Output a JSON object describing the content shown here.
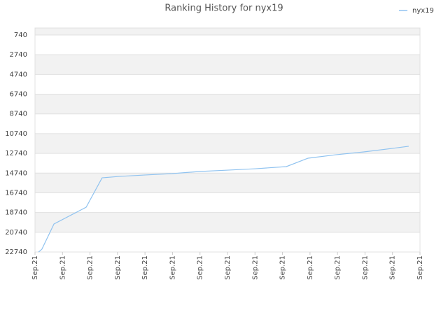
{
  "chart_data": {
    "type": "line",
    "title": "Ranking History for nyx19",
    "x": [
      0.13,
      0.25,
      0.69,
      1.86,
      2.44,
      3.05,
      4.02,
      4.99,
      5.98,
      7.0,
      8.02,
      9.14,
      9.93,
      10.94,
      11.96,
      12.98,
      13.59
    ],
    "series": [
      {
        "name": "nyx19",
        "color": "#90c3f0",
        "values": [
          22740,
          22460,
          19900,
          18200,
          15220,
          15080,
          14930,
          14790,
          14580,
          14440,
          14300,
          14080,
          13230,
          12880,
          12590,
          12240,
          12020
        ]
      }
    ],
    "xlim": [
      0,
      14
    ],
    "xticks": [
      {
        "value": 0,
        "label": "Sep.21"
      },
      {
        "value": 1,
        "label": "Sep.21"
      },
      {
        "value": 2,
        "label": "Sep.21"
      },
      {
        "value": 3,
        "label": "Sep.21"
      },
      {
        "value": 4,
        "label": "Sep.21"
      },
      {
        "value": 5,
        "label": "Sep.21"
      },
      {
        "value": 6,
        "label": "Sep.21"
      },
      {
        "value": 7,
        "label": "Sep.21"
      },
      {
        "value": 8,
        "label": "Sep.21"
      },
      {
        "value": 9,
        "label": "Sep.21"
      },
      {
        "value": 10,
        "label": "Sep.21"
      },
      {
        "value": 11,
        "label": "Sep.21"
      },
      {
        "value": 12,
        "label": "Sep.21"
      },
      {
        "value": 13,
        "label": "Sep.21"
      },
      {
        "value": 14,
        "label": "Sep.21"
      }
    ],
    "ylim": [
      22740,
      30
    ],
    "yticks": [
      740,
      2740,
      4740,
      6740,
      8740,
      10740,
      12740,
      14740,
      16740,
      18740,
      20740,
      22740
    ],
    "grid": true,
    "legend": "top-right"
  }
}
